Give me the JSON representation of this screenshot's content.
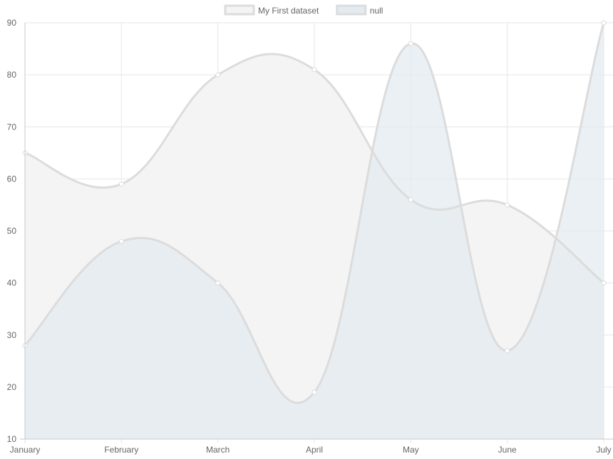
{
  "chart_data": {
    "type": "area",
    "title": "",
    "xlabel": "",
    "ylabel": "",
    "categories": [
      "January",
      "February",
      "March",
      "April",
      "May",
      "June",
      "July"
    ],
    "ylim": [
      10,
      90
    ],
    "yticks": [
      10,
      20,
      30,
      40,
      50,
      60,
      70,
      80,
      90
    ],
    "grid": true,
    "legend_position": "top-center",
    "series": [
      {
        "name": "My First dataset",
        "values": [
          65,
          59,
          80,
          81,
          56,
          55,
          40
        ],
        "fill": "#f4f4f4",
        "stroke": "#dcdcdc"
      },
      {
        "name": "null",
        "values": [
          28,
          48,
          40,
          19,
          86,
          27,
          90
        ],
        "fill": "#e3ebf0",
        "stroke": "#dcdcdc"
      }
    ]
  }
}
